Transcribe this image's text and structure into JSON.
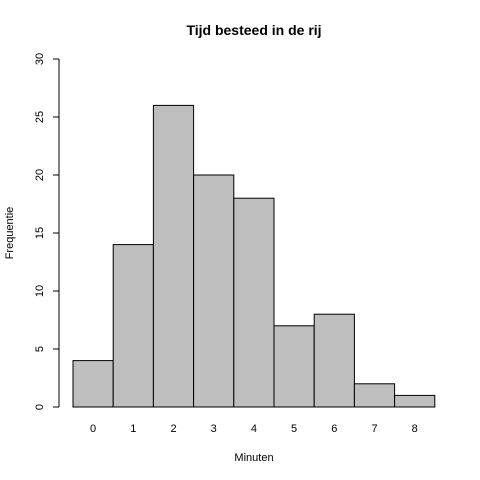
{
  "chart_data": {
    "type": "bar",
    "title": "Tijd besteed in de rij",
    "xlabel": "Minuten",
    "ylabel": "Frequentie",
    "categories": [
      "0",
      "1",
      "2",
      "3",
      "4",
      "5",
      "6",
      "7",
      "8"
    ],
    "values": [
      4,
      14,
      26,
      20,
      18,
      7,
      8,
      2,
      1
    ],
    "ylim": [
      0,
      30
    ],
    "yticks": [
      0,
      5,
      10,
      15,
      20,
      25,
      30
    ],
    "bar_color": "#bebebe",
    "grid": false,
    "legend": "none"
  }
}
